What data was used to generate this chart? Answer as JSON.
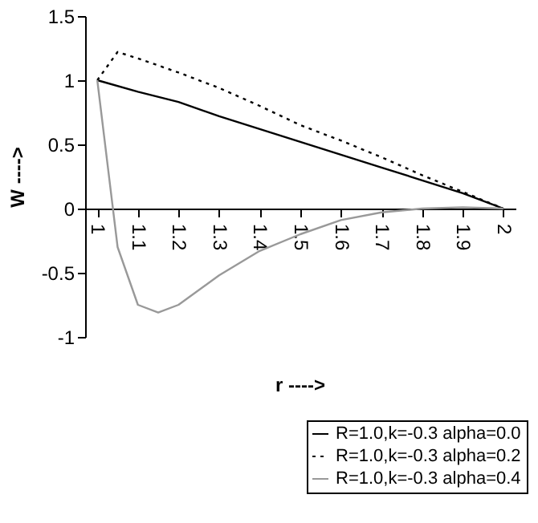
{
  "chart_data": {
    "type": "line",
    "xlabel": "r ---->",
    "ylabel": "W ---->",
    "xlim": [
      0.97,
      2.03
    ],
    "xticks": [
      1,
      1.1,
      1.2,
      1.3,
      1.4,
      1.5,
      1.6,
      1.7,
      1.8,
      1.9,
      2
    ],
    "ylim": [
      -1,
      1.5
    ],
    "yticks": [
      -1,
      -0.5,
      0,
      0.5,
      1,
      1.5
    ],
    "grid": false,
    "legend": "bottom right",
    "marker": "none",
    "series": [
      {
        "name": "R=1.0,k=-0.3 alpha=0.0",
        "color": "#000000",
        "line_style": "solid",
        "x": [
          1,
          1.1,
          1.2,
          1.3,
          1.4,
          1.5,
          1.6,
          1.7,
          1.8,
          1.9,
          2
        ],
        "values": [
          1,
          0.91,
          0.83,
          0.72,
          0.62,
          0.52,
          0.42,
          0.32,
          0.22,
          0.12,
          0
        ]
      },
      {
        "name": "R=1.0,k=-0.3 alpha=0.2",
        "color": "#000000",
        "line_style": "dotted",
        "x": [
          1,
          1.05,
          1.1,
          1.2,
          1.3,
          1.4,
          1.5,
          1.6,
          1.7,
          1.8,
          1.9,
          2
        ],
        "values": [
          1,
          1.22,
          1.17,
          1.06,
          0.94,
          0.8,
          0.65,
          0.53,
          0.4,
          0.26,
          0.13,
          0
        ]
      },
      {
        "name": "R=1.0,k=-0.3 alpha=0.4",
        "color": "#999999",
        "line_style": "solid",
        "x": [
          1,
          1.05,
          1.1,
          1.15,
          1.2,
          1.3,
          1.4,
          1.5,
          1.6,
          1.7,
          1.8,
          1.9,
          2
        ],
        "values": [
          1,
          -0.3,
          -0.75,
          -0.81,
          -0.75,
          -0.52,
          -0.33,
          -0.2,
          -0.09,
          -0.03,
          0,
          0.01,
          0
        ]
      }
    ]
  }
}
